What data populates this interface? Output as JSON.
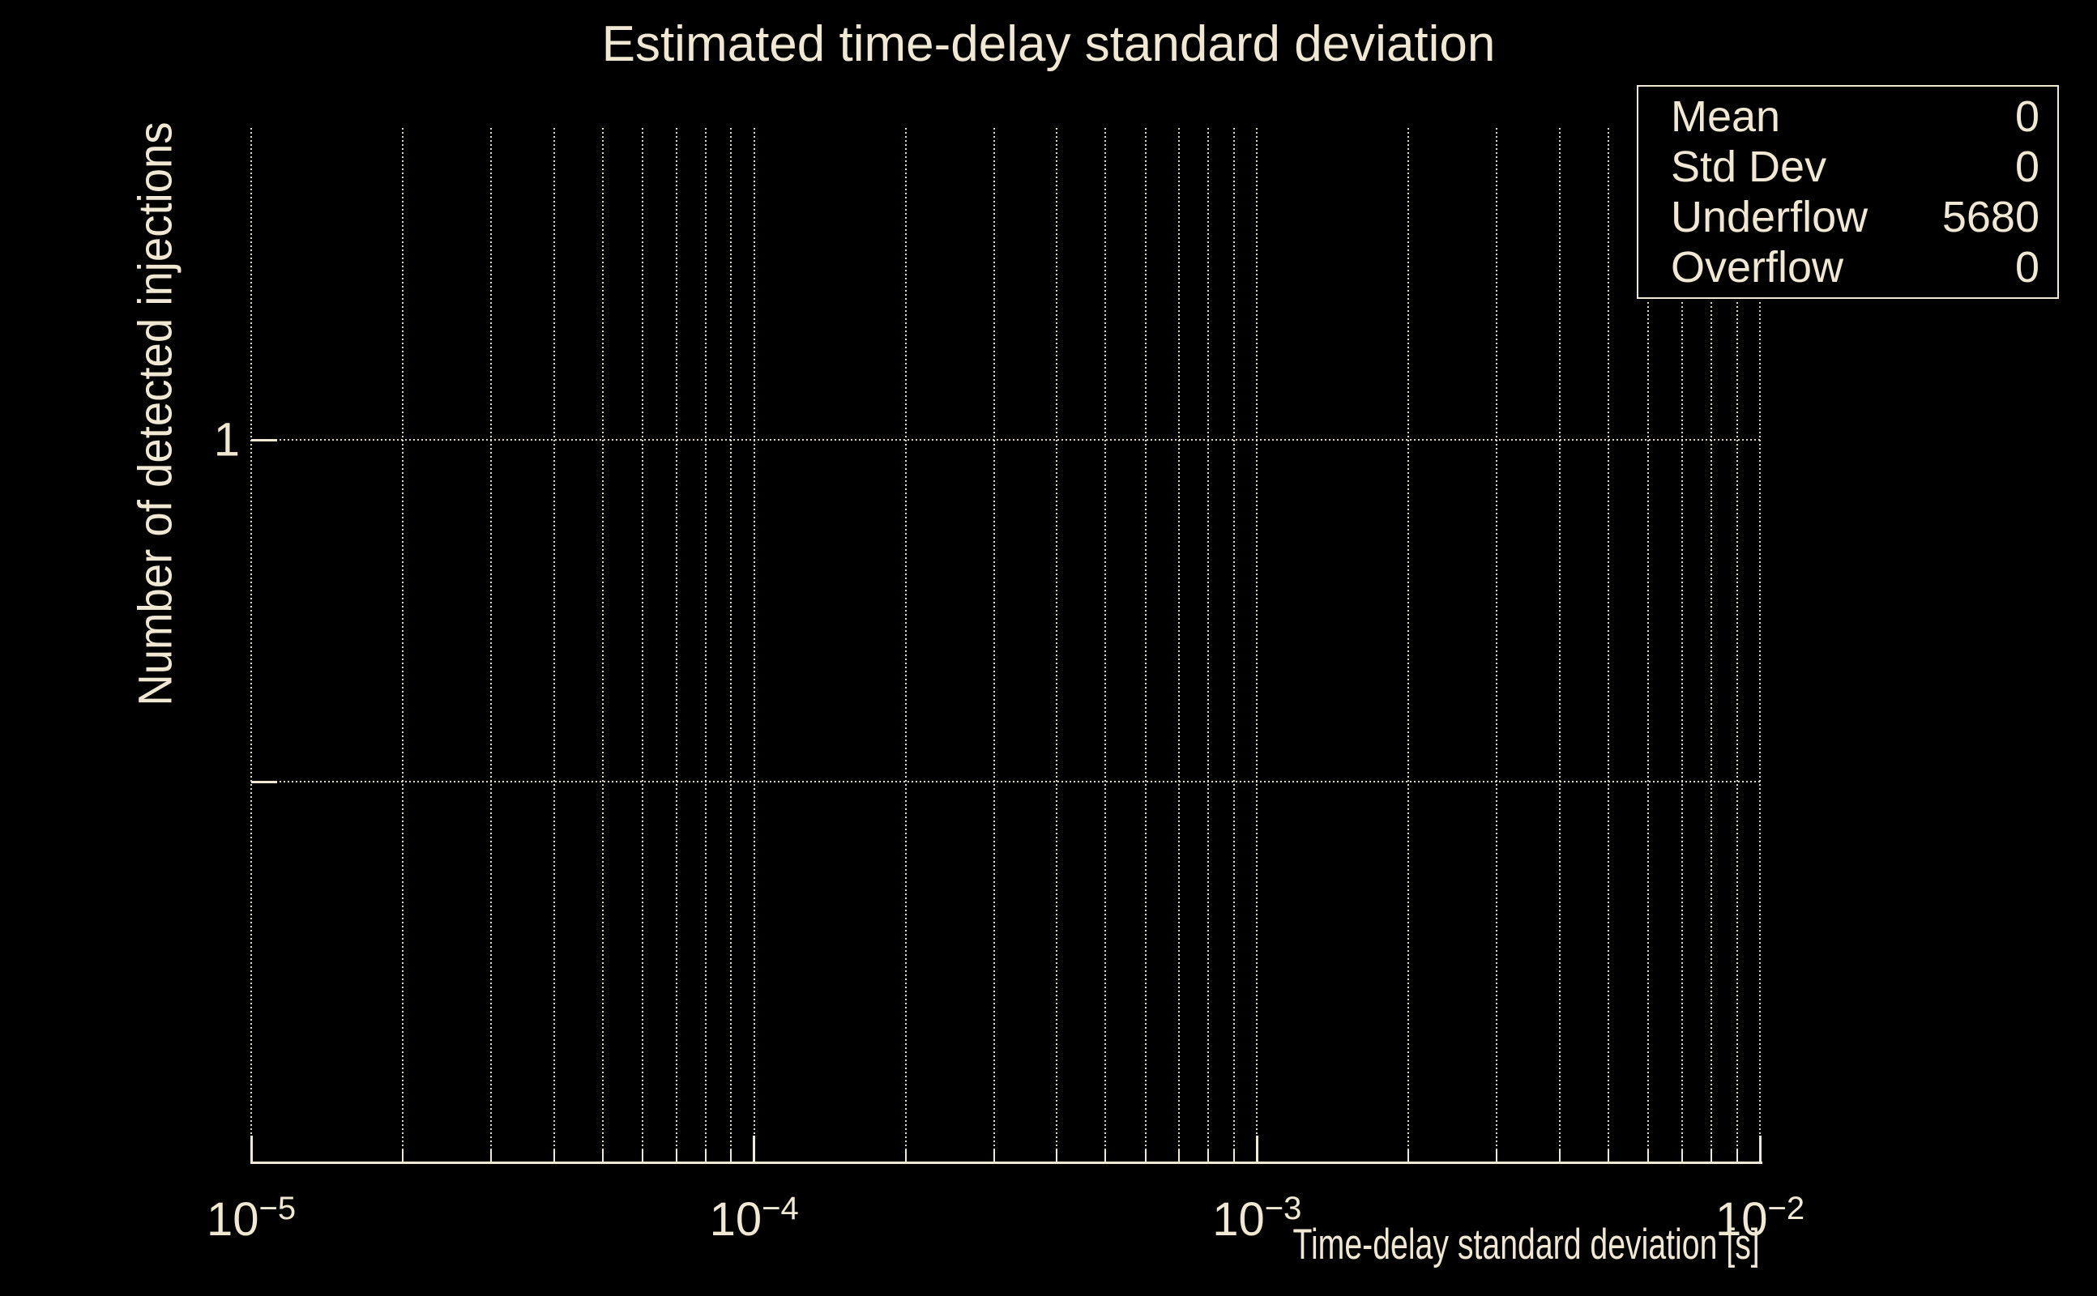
{
  "page": {
    "background": "#000000",
    "accent": "#F0E8D2"
  },
  "chart_data": {
    "type": "histogram",
    "title": "Estimated time-delay standard deviation",
    "xlabel": "Time-delay standard deviation [s]",
    "ylabel": "Number of detected injections",
    "x_axis": {
      "scale": "log",
      "min": "1e-05",
      "max": "1e-02",
      "tick_base": "10",
      "tick_exponents": [
        "−5",
        "−4",
        "−3",
        "−2"
      ],
      "minor_gridlines": true
    },
    "y_axis": {
      "scale": "log",
      "ticks": [
        {
          "label": "1"
        },
        {
          "label": ""
        }
      ]
    },
    "series": {
      "values": [],
      "visible_bins": 0
    },
    "grid": true,
    "stats_box": {
      "position": "top-right",
      "rows": [
        {
          "label": "Mean",
          "value": "0"
        },
        {
          "label": "Std Dev",
          "value": "0"
        },
        {
          "label": "Underflow",
          "value": "5680"
        },
        {
          "label": "Overflow",
          "value": "0"
        }
      ]
    }
  }
}
